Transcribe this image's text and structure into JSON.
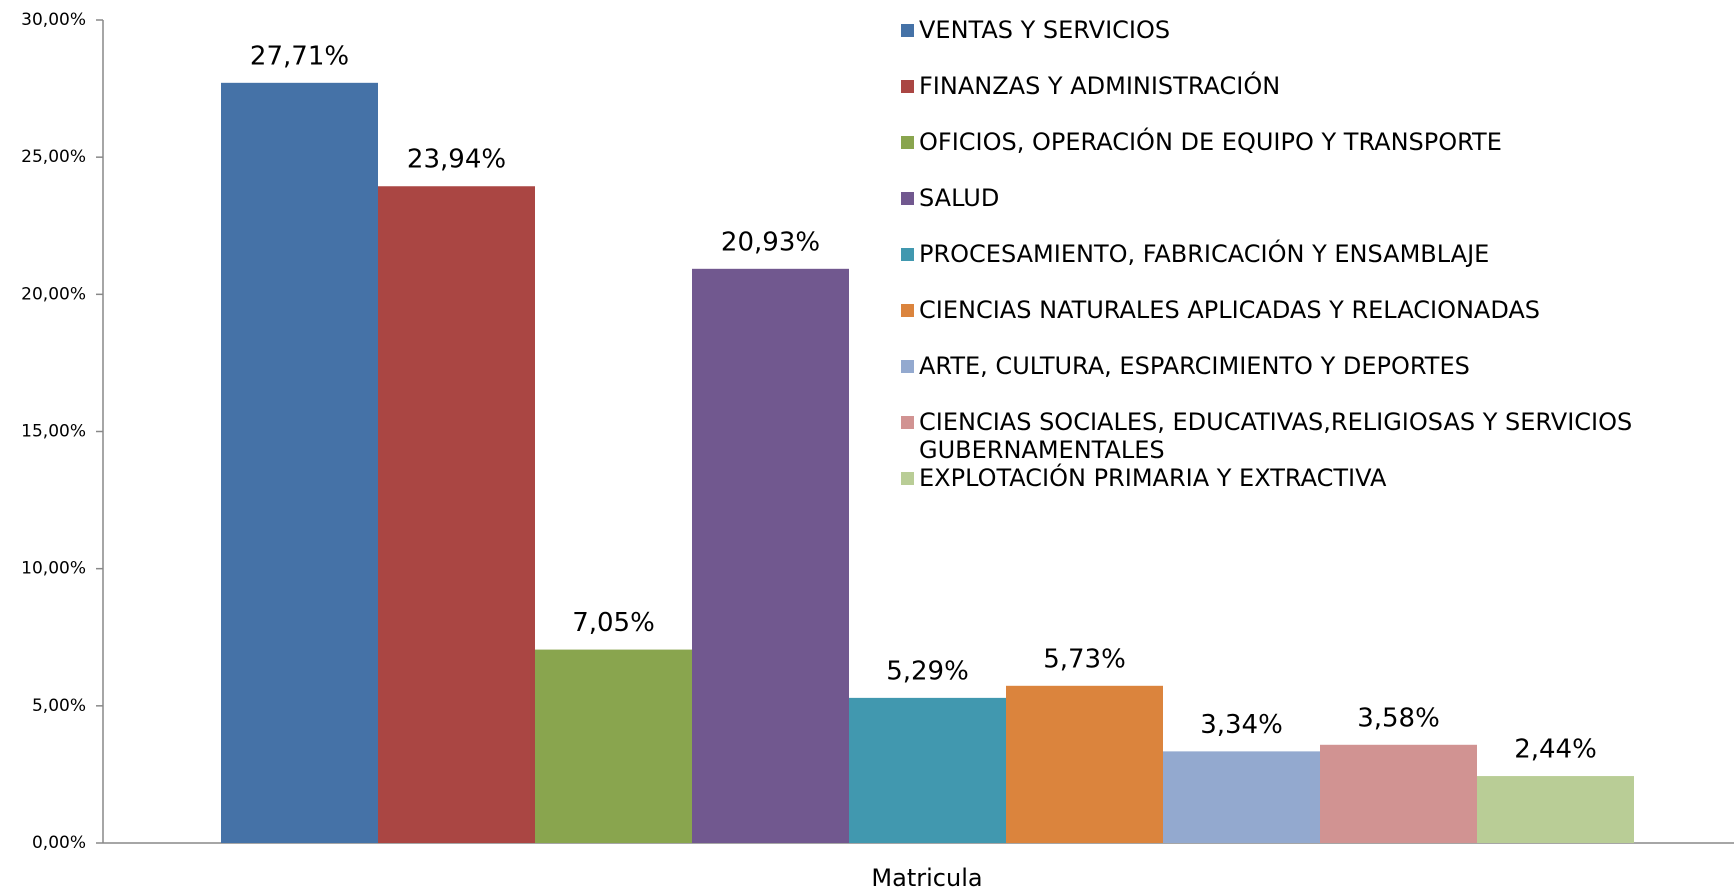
{
  "chart_data": {
    "type": "bar",
    "categories": [
      "Matricula"
    ],
    "series": [
      {
        "name": "VENTAS Y SERVICIOS",
        "color": "#4572a7",
        "values": [
          27.71
        ],
        "value_labels": [
          "27,71%"
        ]
      },
      {
        "name": "FINANZAS Y ADMINISTRACIÓN",
        "color": "#aa4643",
        "values": [
          23.94
        ],
        "value_labels": [
          "23,94%"
        ]
      },
      {
        "name": "OFICIOS, OPERACIÓN DE EQUIPO Y TRANSPORTE",
        "color": "#89a54e",
        "values": [
          7.05
        ],
        "value_labels": [
          "7,05%"
        ]
      },
      {
        "name": "SALUD",
        "color": "#71588f",
        "values": [
          20.93
        ],
        "value_labels": [
          "20,93%"
        ]
      },
      {
        "name": "PROCESAMIENTO, FABRICACIÓN Y ENSAMBLAJE",
        "color": "#4198af",
        "values": [
          5.29
        ],
        "value_labels": [
          "5,29%"
        ]
      },
      {
        "name": "CIENCIAS NATURALES APLICADAS Y RELACIONADAS",
        "color": "#db843d",
        "values": [
          5.73
        ],
        "value_labels": [
          "5,73%"
        ]
      },
      {
        "name": "ARTE, CULTURA, ESPARCIMIENTO Y DEPORTES",
        "color": "#93a9cf",
        "values": [
          3.34
        ],
        "value_labels": [
          "3,34%"
        ]
      },
      {
        "name": "CIENCIAS SOCIALES, EDUCATIVAS,RELIGIOSAS Y SERVICIOS GUBERNAMENTALES",
        "color": "#d19392",
        "values": [
          3.58
        ],
        "value_labels": [
          "3,58%"
        ]
      },
      {
        "name": "EXPLOTACIÓN PRIMARIA Y EXTRACTIVA",
        "color": "#b9cd96",
        "values": [
          2.44
        ],
        "value_labels": [
          "2,44%"
        ]
      }
    ],
    "ylim": [
      0,
      30
    ],
    "yticks": [
      {
        "value": 0,
        "label": "0,00%"
      },
      {
        "value": 5,
        "label": "5,00%"
      },
      {
        "value": 10,
        "label": "10,00%"
      },
      {
        "value": 15,
        "label": "15,00%"
      },
      {
        "value": 20,
        "label": "20,00%"
      },
      {
        "value": 25,
        "label": "25,00%"
      },
      {
        "value": 30,
        "label": "30,00%"
      }
    ],
    "grid": false,
    "legend": "top-right"
  }
}
